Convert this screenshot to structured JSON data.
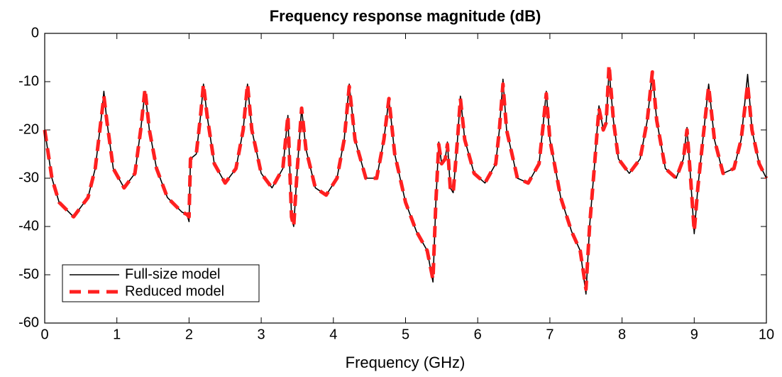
{
  "chart_data": {
    "type": "line",
    "title": "Frequency response magnitude (dB)",
    "xlabel": "Frequency (GHz)",
    "x": [
      0,
      0.1,
      0.2,
      0.4,
      0.6,
      0.7,
      0.78,
      0.82,
      0.86,
      0.95,
      1.1,
      1.25,
      1.33,
      1.39,
      1.45,
      1.55,
      1.7,
      1.9,
      1.97,
      2.0,
      2.02,
      2.1,
      2.16,
      2.2,
      2.25,
      2.35,
      2.5,
      2.65,
      2.75,
      2.81,
      2.87,
      3.0,
      3.15,
      3.3,
      3.37,
      3.42,
      3.45,
      3.5,
      3.56,
      3.62,
      3.75,
      3.9,
      4.05,
      4.15,
      4.22,
      4.3,
      4.45,
      4.6,
      4.7,
      4.77,
      4.85,
      5.0,
      5.15,
      5.3,
      5.38,
      5.42,
      5.46,
      5.5,
      5.55,
      5.58,
      5.62,
      5.66,
      5.72,
      5.76,
      5.82,
      5.95,
      6.1,
      6.25,
      6.3,
      6.35,
      6.4,
      6.55,
      6.7,
      6.85,
      6.9,
      6.95,
      7.0,
      7.15,
      7.3,
      7.42,
      7.5,
      7.55,
      7.62,
      7.68,
      7.74,
      7.78,
      7.82,
      7.88,
      7.95,
      8.1,
      8.25,
      8.35,
      8.42,
      8.48,
      8.6,
      8.75,
      8.85,
      8.9,
      8.95,
      9.0,
      9.05,
      9.12,
      9.2,
      9.28,
      9.4,
      9.55,
      9.65,
      9.74,
      9.8,
      9.9,
      10
    ],
    "series": [
      {
        "name": "Full-size model",
        "color": "#000000",
        "values": [
          -20,
          -30,
          -35,
          -38,
          -34,
          -28,
          -18,
          -12,
          -18,
          -28,
          -32,
          -29,
          -20,
          -12,
          -20,
          -28,
          -34,
          -37,
          -37.5,
          -39,
          -26,
          -25,
          -17,
          -10.5,
          -17,
          -27,
          -31,
          -28,
          -20,
          -10.5,
          -20,
          -29,
          -32,
          -28,
          -17,
          -38,
          -40,
          -28,
          -15.5,
          -24,
          -32,
          -33.5,
          -30,
          -22,
          -10.5,
          -22,
          -30,
          -30,
          -22,
          -13.5,
          -25,
          -35,
          -41,
          -45,
          -51.5,
          -35,
          -22.5,
          -27,
          -26,
          -22.5,
          -32,
          -33,
          -22,
          -13,
          -22,
          -29,
          -31,
          -27,
          -20,
          -9.5,
          -20,
          -30,
          -31,
          -27,
          -20,
          -12,
          -22,
          -34,
          -41,
          -45,
          -54,
          -40,
          -27,
          -15,
          -20,
          -18.5,
          -7.5,
          -18,
          -26,
          -29,
          -26,
          -18,
          -8,
          -18,
          -28,
          -30,
          -26,
          -19.5,
          -30,
          -41.5,
          -32,
          -22,
          -10.5,
          -22,
          -29,
          -28,
          -22,
          -8.5,
          -20,
          -27,
          -30
        ]
      },
      {
        "name": "Reduced model",
        "color": "#ff2020",
        "values": [
          -20,
          -30,
          -35,
          -38,
          -34,
          -28,
          -18,
          -13,
          -18,
          -28,
          -32,
          -29,
          -20,
          -11.5,
          -20,
          -28,
          -34,
          -37,
          -37.5,
          -38,
          -26,
          -25,
          -17,
          -10.5,
          -17,
          -27,
          -31,
          -28,
          -20,
          -10.5,
          -20,
          -29,
          -32,
          -28,
          -17,
          -38,
          -40,
          -28,
          -15.5,
          -24,
          -32,
          -33.5,
          -30,
          -22,
          -11,
          -22,
          -30,
          -30,
          -22,
          -13.5,
          -25,
          -35,
          -41,
          -45,
          -51,
          -35,
          -23,
          -27,
          -26,
          -23,
          -32,
          -33,
          -22,
          -13.5,
          -22,
          -29,
          -31,
          -27,
          -20,
          -10.5,
          -20,
          -30,
          -31,
          -27,
          -20,
          -12.5,
          -22,
          -34,
          -41,
          -45,
          -53,
          -40,
          -27,
          -15.5,
          -20,
          -18.5,
          -6.5,
          -18,
          -26,
          -29,
          -26,
          -18,
          -8,
          -18,
          -28,
          -30,
          -26,
          -20,
          -30,
          -41,
          -32,
          -22,
          -11,
          -22,
          -29,
          -28,
          -22,
          -10.5,
          -20,
          -27,
          -30
        ]
      }
    ],
    "xlim": [
      0,
      10
    ],
    "xticks": [
      0,
      1,
      2,
      3,
      4,
      5,
      6,
      7,
      8,
      9,
      10
    ],
    "ylim": [
      -60,
      0
    ],
    "yticks": [
      -60,
      -50,
      -40,
      -30,
      -20,
      -10,
      0
    ],
    "legend": "lower left"
  }
}
